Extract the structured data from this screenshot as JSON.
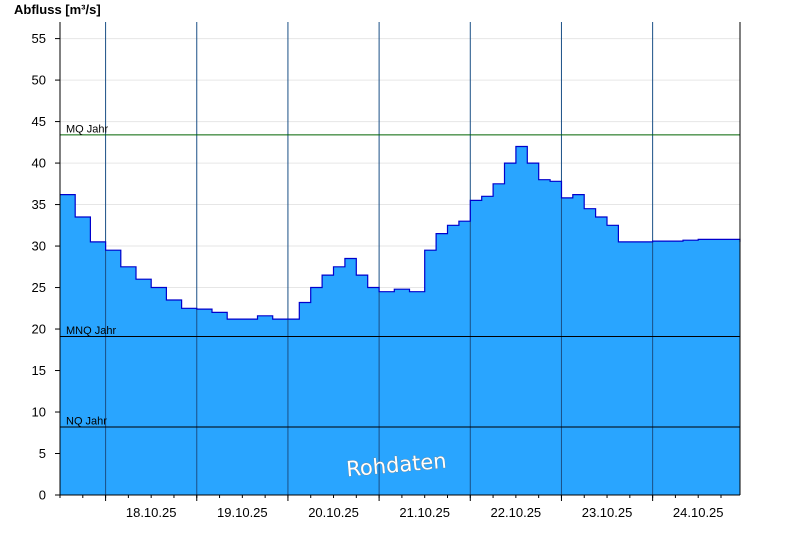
{
  "chart_data": {
    "type": "area",
    "ylabel": "Abfluss [m³/s]",
    "xlabel": "",
    "ylim": [
      0,
      57
    ],
    "yticks": [
      0,
      5,
      10,
      15,
      20,
      25,
      30,
      35,
      40,
      45,
      50,
      55
    ],
    "x_range": [
      "17.10.25 12:00",
      "24.10.25 23:00"
    ],
    "x_tick_labels": [
      "18.10.25",
      "19.10.25",
      "20.10.25",
      "21.10.25",
      "22.10.25",
      "23.10.25",
      "24.10.25"
    ],
    "grid": true,
    "colors": {
      "area_fill": "#29a5ff",
      "area_line": "#0000cc",
      "mq_line": "#006400",
      "ref_line": "#000000"
    },
    "reference_lines": [
      {
        "label": "MQ Jahr",
        "value": 43.4
      },
      {
        "label": "MNQ Jahr",
        "value": 19.1
      },
      {
        "label": "NQ Jahr",
        "value": 8.2
      }
    ],
    "watermark": "Rohdaten",
    "series": [
      {
        "x": [
          "17.10.25 12:00",
          "17.10.25 16:00",
          "17.10.25 20:00",
          "18.10.25 00:00",
          "18.10.25 04:00",
          "18.10.25 08:00",
          "18.10.25 12:00",
          "18.10.25 16:00",
          "18.10.25 20:00",
          "19.10.25 00:00",
          "19.10.25 04:00",
          "19.10.25 08:00",
          "19.10.25 12:00",
          "19.10.25 16:00",
          "19.10.25 20:00",
          "20.10.25 00:00",
          "20.10.25 03:00",
          "20.10.25 06:00",
          "20.10.25 09:00",
          "20.10.25 12:00",
          "20.10.25 15:00",
          "20.10.25 18:00",
          "20.10.25 21:00",
          "21.10.25 00:00",
          "21.10.25 04:00",
          "21.10.25 08:00",
          "21.10.25 12:00",
          "21.10.25 15:00",
          "21.10.25 18:00",
          "21.10.25 21:00",
          "22.10.25 00:00",
          "22.10.25 03:00",
          "22.10.25 06:00",
          "22.10.25 09:00",
          "22.10.25 12:00",
          "22.10.25 15:00",
          "22.10.25 18:00",
          "22.10.25 21:00",
          "23.10.25 00:00",
          "23.10.25 03:00",
          "23.10.25 06:00",
          "23.10.25 09:00",
          "23.10.25 12:00",
          "23.10.25 15:00",
          "23.10.25 18:00",
          "23.10.25 21:00",
          "24.10.25 00:00",
          "24.10.25 04:00",
          "24.10.25 08:00",
          "24.10.25 12:00",
          "24.10.25 16:00",
          "24.10.25 20:00",
          "24.10.25 23:00"
        ],
        "y": [
          36.2,
          33.5,
          30.5,
          29.5,
          27.5,
          26.0,
          25.0,
          23.5,
          22.5,
          22.4,
          22.0,
          21.2,
          21.2,
          21.6,
          21.2,
          21.2,
          23.2,
          25.0,
          26.5,
          27.5,
          28.5,
          26.5,
          25.0,
          24.5,
          24.8,
          24.5,
          29.5,
          31.5,
          32.5,
          33.0,
          35.5,
          36.0,
          37.5,
          40.0,
          42.0,
          40.0,
          38.0,
          37.8,
          35.8,
          36.2,
          34.5,
          33.5,
          32.5,
          30.5,
          30.5,
          30.5,
          30.6,
          30.6,
          30.7,
          30.8,
          30.8,
          30.8,
          30.5
        ]
      }
    ]
  }
}
